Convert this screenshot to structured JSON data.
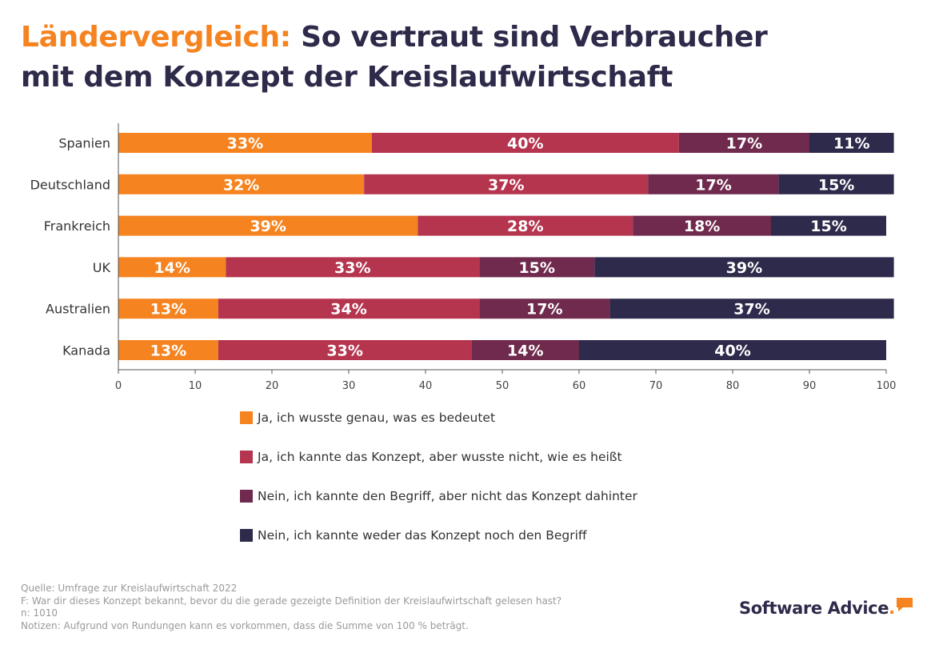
{
  "title": {
    "accent": "Ländervergleich:",
    "line1_rest": " So vertraut sind Verbraucher",
    "line2": "mit dem Konzept der Kreislaufwirtschaft"
  },
  "colors": {
    "accent": "#f5831f",
    "title": "#2d2a4a",
    "series": [
      "#f5831f",
      "#b5354f",
      "#6f2a4d",
      "#2e2a4b"
    ]
  },
  "chart_data": {
    "type": "bar",
    "orientation": "horizontal",
    "stacked": true,
    "categories": [
      "Spanien",
      "Deutschland",
      "Frankreich",
      "UK",
      "Australien",
      "Kanada"
    ],
    "series": [
      {
        "name": "Ja, ich wusste genau, was es bedeutet",
        "values": [
          33,
          32,
          39,
          14,
          13,
          13
        ],
        "labels": [
          "33%",
          "32%",
          "39%",
          "14%",
          "13%",
          "13%"
        ]
      },
      {
        "name": "Ja, ich kannte das Konzept, aber wusste nicht, wie es heißt",
        "values": [
          40,
          37,
          28,
          33,
          34,
          33
        ],
        "labels": [
          "40%",
          "37%",
          "28%",
          "33%",
          "34%",
          "33%"
        ]
      },
      {
        "name": "Nein, ich kannte den Begriff, aber nicht das Konzept dahinter",
        "values": [
          17,
          17,
          18,
          15,
          17,
          14
        ],
        "labels": [
          "17%",
          "17%",
          "18%",
          "15%",
          "17%",
          "14%"
        ]
      },
      {
        "name": "Nein, ich kannte weder das Konzept noch den Begriff",
        "values": [
          11,
          15,
          15,
          39,
          37,
          40
        ],
        "labels": [
          "11%",
          "15%",
          "15%",
          "39%",
          "37%",
          "40%"
        ]
      }
    ],
    "xlim": [
      0,
      100
    ],
    "xticks": [
      "0",
      "10",
      "20",
      "30",
      "40",
      "50",
      "60",
      "70",
      "80",
      "90",
      "100"
    ],
    "grid": false,
    "legend_position": "bottom"
  },
  "legend": [
    "Ja, ich wusste genau, was es bedeutet",
    "Ja, ich kannte das Konzept, aber wusste nicht, wie es heißt",
    "Nein, ich kannte den Begriff, aber nicht das Konzept dahinter",
    "Nein, ich kannte weder das Konzept noch den Begriff"
  ],
  "footer": {
    "source": "Quelle: Umfrage zur Kreislaufwirtschaft 2022",
    "question": "F: War dir dieses Konzept bekannt, bevor du die gerade gezeigte Definition der Kreislaufwirtschaft gelesen hast?",
    "n": "n: 1010",
    "notes": "Notizen: Aufgrund von Rundungen kann es vorkommen, dass die Summe von 100 % beträgt."
  },
  "logo": {
    "text": "Software Advice",
    "dot": "."
  }
}
